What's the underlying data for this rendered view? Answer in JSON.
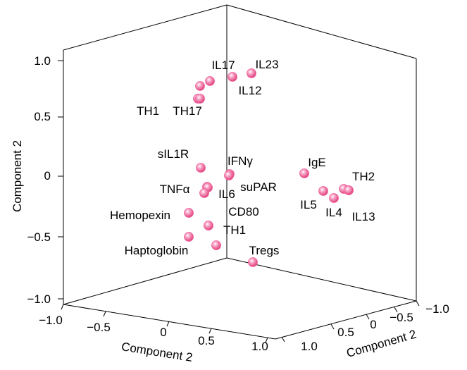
{
  "chart_data": {
    "type": "scatter",
    "title": "",
    "axis_titles": {
      "y": "Component 2",
      "x_bottom_left": "Component 2",
      "x_bottom_right": "Component 2"
    },
    "y_ticks": [
      "1.0",
      "0.5",
      "0",
      "−0.5",
      "−1.0"
    ],
    "left_floor_ticks": [
      "−1.0",
      "−0.5",
      "0",
      "0.5",
      "1.0"
    ],
    "right_floor_ticks": [
      "1.0",
      "0.5",
      "0",
      "−0.5",
      "−1.0"
    ],
    "ylim": [
      -1.0,
      1.0
    ],
    "grid": false,
    "marker_color": "#f0609a",
    "points": [
      {
        "label": "IL17",
        "y": 0.79
      },
      {
        "label": "IL23",
        "y": 0.84
      },
      {
        "label": "IL12",
        "y": 0.82
      },
      {
        "label": "",
        "y": 0.75
      },
      {
        "label": "TH17",
        "y": 0.65
      },
      {
        "label": "TH1",
        "y": 0.48
      },
      {
        "label": "sIL1R",
        "y": 0.07
      },
      {
        "label": "IFNγ",
        "y": 0.02
      },
      {
        "label": "",
        "y": 0.01
      },
      {
        "label": "suPAR",
        "y": -0.08
      },
      {
        "label": "TNFα",
        "y": -0.09
      },
      {
        "label": "IL6",
        "y": -0.13
      },
      {
        "label": "CD80",
        "y": -0.29
      },
      {
        "label": "Hemopexin",
        "y": -0.3
      },
      {
        "label": "TH1",
        "y": -0.4
      },
      {
        "label": "Haptoglobin",
        "y": -0.5
      },
      {
        "label": "",
        "y": -0.57
      },
      {
        "label": "Tregs",
        "y": -0.71
      },
      {
        "label": "IgE",
        "y": 0.03
      },
      {
        "label": "TH2",
        "y": -0.1
      },
      {
        "label": "",
        "y": -0.11
      },
      {
        "label": "IL5",
        "y": -0.12
      },
      {
        "label": "IL4",
        "y": -0.17
      },
      {
        "label": "IL13",
        "y": -0.2
      }
    ]
  }
}
